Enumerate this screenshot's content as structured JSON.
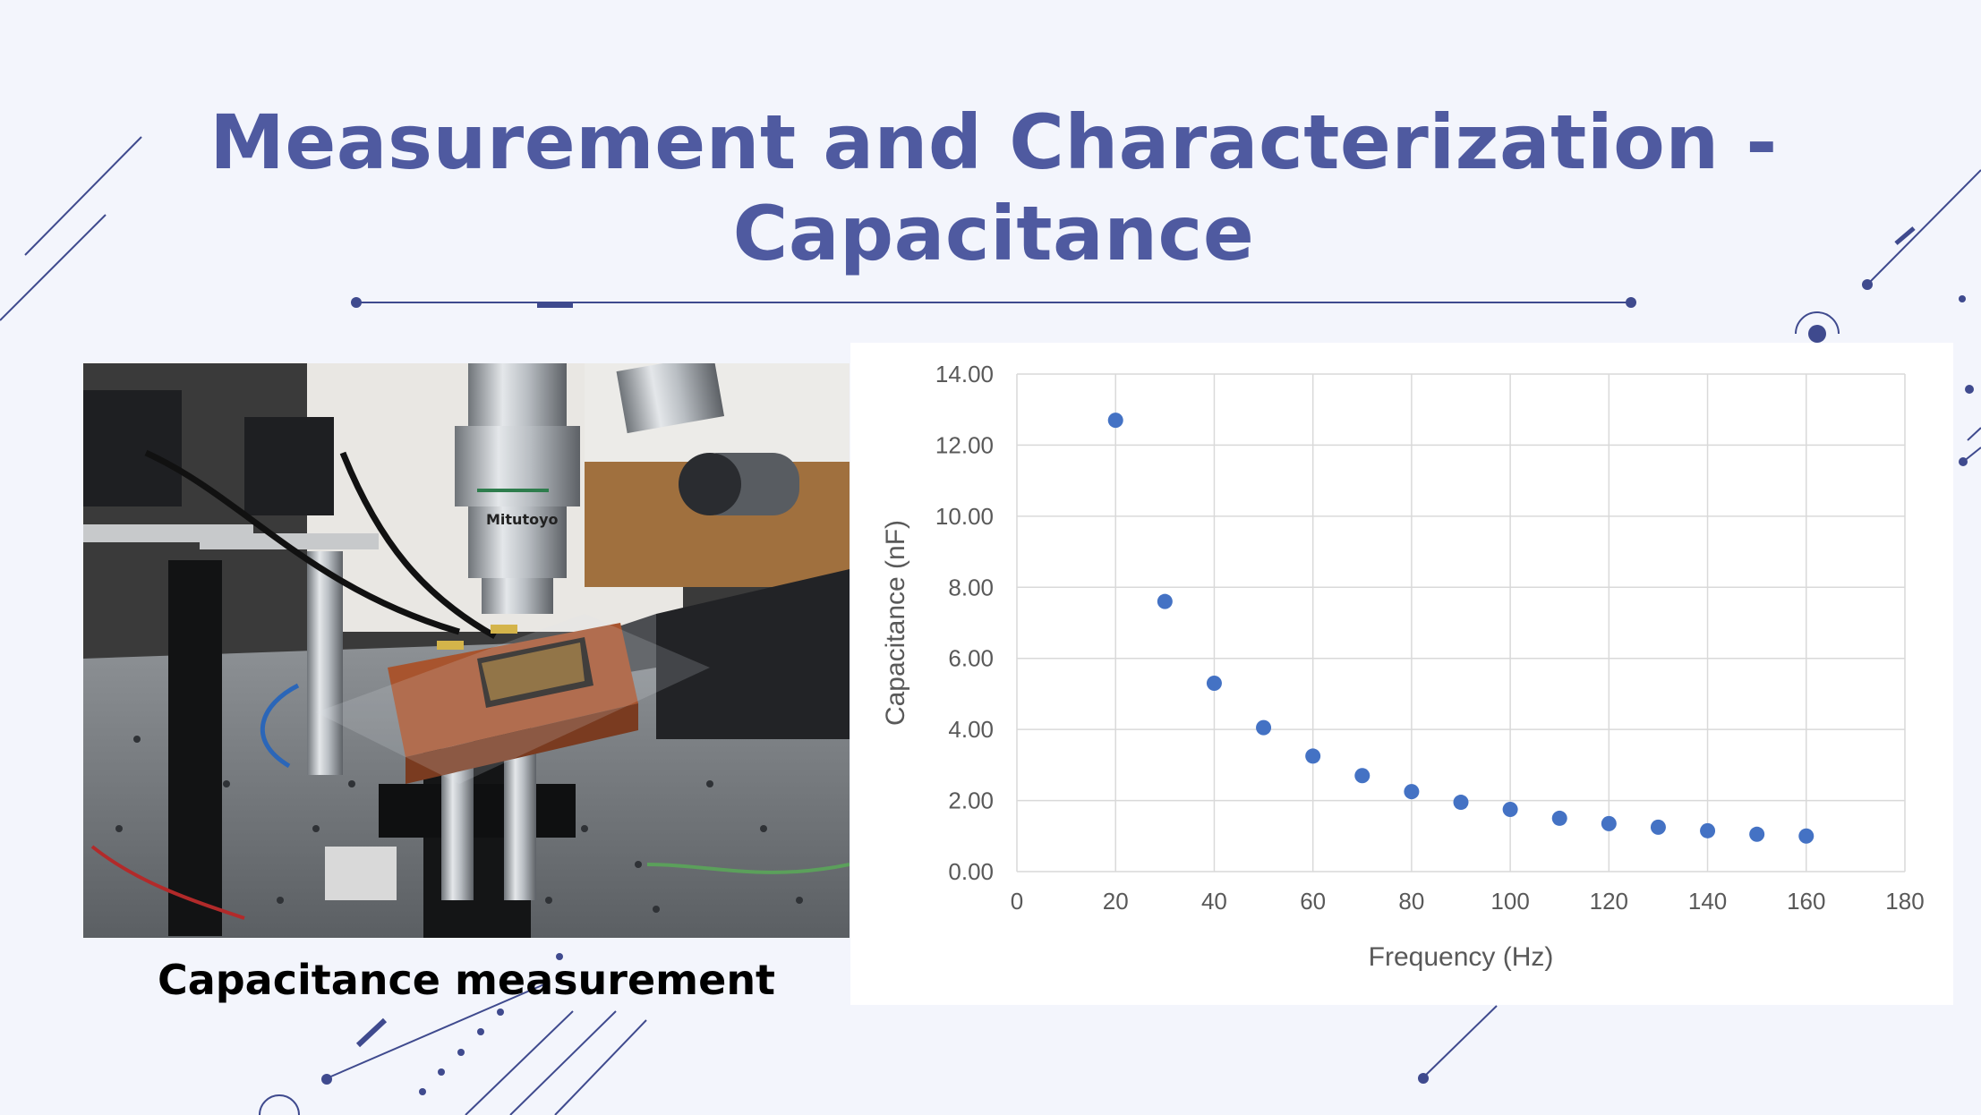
{
  "slide": {
    "title_line1": "Measurement and Characterization -",
    "title_line2": "Capacitance",
    "photo_caption": "Capacitance measurement",
    "photo_text": "Mitutoyo"
  },
  "colors": {
    "title": "#4f5aa0",
    "background": "#f3f5fc",
    "decor": "#3f4a8e",
    "marker": "#4472c4",
    "gridline": "#d9d9d9"
  },
  "chart_data": {
    "type": "scatter",
    "title": "",
    "xlabel": "Frequency (Hz)",
    "ylabel": "Capacitance (nF)",
    "xlim": [
      0,
      180
    ],
    "ylim": [
      0,
      14
    ],
    "xticks": [
      "0",
      "20",
      "40",
      "60",
      "80",
      "100",
      "120",
      "140",
      "160",
      "180"
    ],
    "yticks": [
      "0.00",
      "2.00",
      "4.00",
      "6.00",
      "8.00",
      "10.00",
      "12.00",
      "14.00"
    ],
    "grid": true,
    "legend": "none",
    "series": [
      {
        "x": [
          20,
          30,
          40,
          50,
          60,
          70,
          80,
          90,
          100,
          110,
          120,
          130,
          140,
          150,
          160
        ],
        "y": [
          12.7,
          7.6,
          5.3,
          4.05,
          3.25,
          2.7,
          2.25,
          1.95,
          1.75,
          1.5,
          1.35,
          1.25,
          1.15,
          1.05,
          1.0
        ]
      }
    ]
  }
}
